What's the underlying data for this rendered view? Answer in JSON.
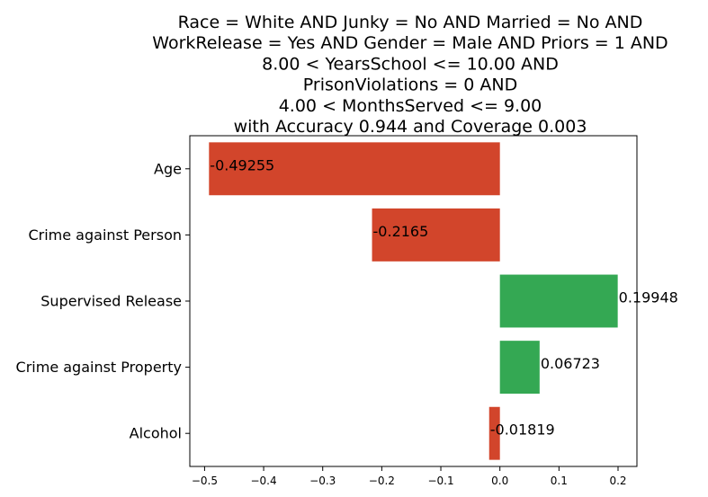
{
  "chart_data": {
    "type": "bar",
    "orientation": "horizontal",
    "title_lines": [
      "Race = White AND Junky = No AND Married = No AND",
      "WorkRelease = Yes AND Gender = Male AND Priors = 1 AND",
      "8.00 < YearsSchool <= 10.00 AND",
      "PrisonViolations = 0 AND",
      "4.00 < MonthsServed <= 9.00",
      "with Accuracy 0.944 and Coverage 0.003"
    ],
    "categories": [
      "Age",
      "Crime against Person",
      "Supervised Release",
      "Crime against Property",
      "Alcohol"
    ],
    "values": [
      -0.49255,
      -0.2165,
      0.19948,
      0.06723,
      -0.01819
    ],
    "value_labels": [
      "-0.49255",
      "-0.2165",
      "0.19948",
      "0.06723",
      "-0.01819"
    ],
    "xlim": [
      -0.525,
      0.232
    ],
    "xticks": [
      -0.5,
      -0.4,
      -0.3,
      -0.2,
      -0.1,
      0.0,
      0.1,
      0.2
    ],
    "xtick_labels": [
      "−0.5",
      "−0.4",
      "−0.3",
      "−0.2",
      "−0.1",
      "0.0",
      "0.1",
      "0.2"
    ],
    "colors": {
      "negative": "#d2452b",
      "positive": "#34a853"
    },
    "grid": false,
    "legend": "none"
  }
}
